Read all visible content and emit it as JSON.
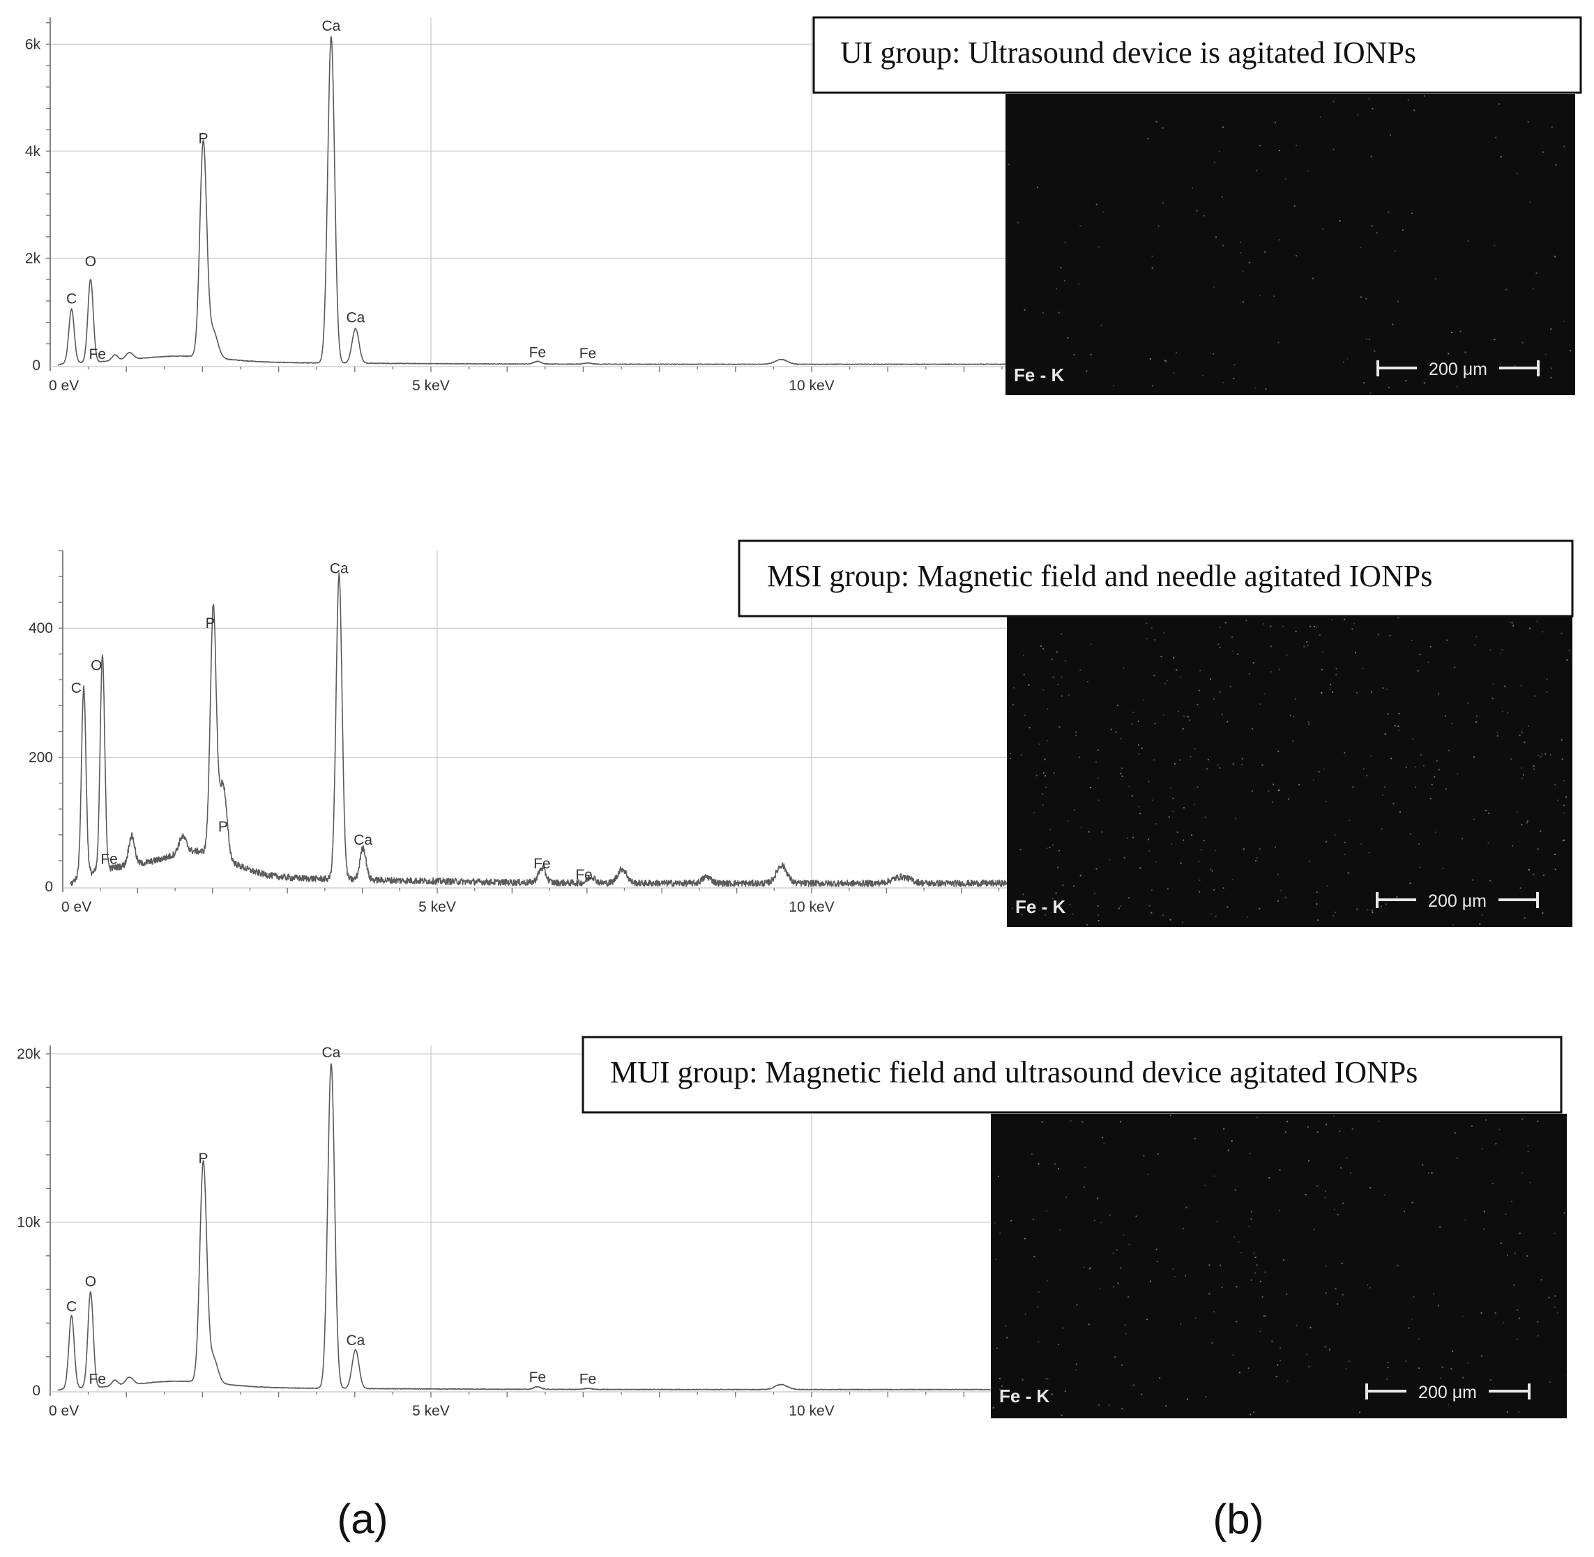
{
  "panels": [
    {
      "title": "UI group: Ultrasound device is agitated IONPs",
      "map": {
        "label": "Fe - K",
        "scalebar": "200 μm"
      },
      "chart_data": {
        "type": "line",
        "xlim": [
          0,
          12.8
        ],
        "ylim": [
          0,
          6500
        ],
        "xticks": [
          {
            "value": 0,
            "label": "0 eV"
          },
          {
            "value": 5,
            "label": "5 keV"
          },
          {
            "value": 10,
            "label": "10 keV"
          }
        ],
        "yticks": [
          {
            "value": 0,
            "label": "0"
          },
          {
            "value": 2000,
            "label": "2k"
          },
          {
            "value": 4000,
            "label": "4k"
          },
          {
            "value": 6000,
            "label": "6k"
          }
        ],
        "grid": true,
        "background": 50,
        "peaks": [
          {
            "x": 0.28,
            "y": 1000,
            "w": 0.035
          },
          {
            "x": 0.53,
            "y": 1550,
            "w": 0.035
          },
          {
            "x": 0.85,
            "y": 110,
            "w": 0.04
          },
          {
            "x": 1.04,
            "y": 130,
            "w": 0.05
          },
          {
            "x": 2.01,
            "y": 4000,
            "w": 0.045
          },
          {
            "x": 2.14,
            "y": 500,
            "w": 0.06
          },
          {
            "x": 3.69,
            "y": 6100,
            "w": 0.045
          },
          {
            "x": 4.01,
            "y": 650,
            "w": 0.045
          },
          {
            "x": 6.4,
            "y": 50,
            "w": 0.05
          },
          {
            "x": 7.06,
            "y": 20,
            "w": 0.05
          },
          {
            "x": 9.6,
            "y": 90,
            "w": 0.08
          }
        ],
        "humps": [
          {
            "x": 1.7,
            "y": 120,
            "w": 0.55
          }
        ],
        "noise": 6,
        "labels": [
          {
            "text": "C",
            "x": 0.28,
            "y": 1150
          },
          {
            "text": "O",
            "x": 0.53,
            "y": 1850
          },
          {
            "text": "Fe",
            "x": 0.62,
            "y": 120
          },
          {
            "text": "P",
            "x": 2.01,
            "y": 4150
          },
          {
            "text": "Ca",
            "x": 3.69,
            "y": 6250
          },
          {
            "text": "Ca",
            "x": 4.01,
            "y": 800
          },
          {
            "text": "Fe",
            "x": 6.4,
            "y": 150
          },
          {
            "text": "Fe",
            "x": 7.06,
            "y": 130
          }
        ]
      }
    },
    {
      "title": "MSI group: Magnetic field and needle agitated IONPs",
      "map": {
        "label": "Fe - K",
        "scalebar": "200 μm"
      },
      "chart_data": {
        "type": "line",
        "xlim": [
          0,
          12.8
        ],
        "ylim": [
          0,
          520
        ],
        "xticks": [
          {
            "value": 0,
            "label": "0 eV"
          },
          {
            "value": 5,
            "label": "5 keV"
          },
          {
            "value": 10,
            "label": "10 keV"
          }
        ],
        "yticks": [
          {
            "value": 0,
            "label": "0"
          },
          {
            "value": 200,
            "label": "200"
          },
          {
            "value": 400,
            "label": "400"
          }
        ],
        "grid": true,
        "background": 14,
        "peaks": [
          {
            "x": 0.28,
            "y": 290,
            "w": 0.03
          },
          {
            "x": 0.53,
            "y": 335,
            "w": 0.03
          },
          {
            "x": 0.92,
            "y": 45,
            "w": 0.04
          },
          {
            "x": 1.6,
            "y": 25,
            "w": 0.05
          },
          {
            "x": 2.01,
            "y": 380,
            "w": 0.04
          },
          {
            "x": 2.14,
            "y": 115,
            "w": 0.05
          },
          {
            "x": 3.69,
            "y": 470,
            "w": 0.04
          },
          {
            "x": 4.01,
            "y": 50,
            "w": 0.04
          },
          {
            "x": 6.4,
            "y": 22,
            "w": 0.05
          },
          {
            "x": 7.06,
            "y": 10,
            "w": 0.05
          },
          {
            "x": 7.47,
            "y": 22,
            "w": 0.06
          },
          {
            "x": 8.6,
            "y": 10,
            "w": 0.06
          },
          {
            "x": 9.6,
            "y": 28,
            "w": 0.07
          },
          {
            "x": 11.2,
            "y": 10,
            "w": 0.12
          }
        ],
        "humps": [
          {
            "x": 1.8,
            "y": 40,
            "w": 0.45
          },
          {
            "x": 0.8,
            "y": 15,
            "w": 0.4
          }
        ],
        "noise": 5,
        "labels": [
          {
            "text": "C",
            "x": 0.18,
            "y": 300
          },
          {
            "text": "O",
            "x": 0.45,
            "y": 335
          },
          {
            "text": "Fe",
            "x": 0.62,
            "y": 35
          },
          {
            "text": "P",
            "x": 1.97,
            "y": 400
          },
          {
            "text": "P",
            "x": 2.14,
            "y": 85
          },
          {
            "text": "Ca",
            "x": 3.69,
            "y": 485
          },
          {
            "text": "Ca",
            "x": 4.01,
            "y": 65
          },
          {
            "text": "Fe",
            "x": 6.4,
            "y": 28
          },
          {
            "text": "Fe",
            "x": 6.96,
            "y": 11
          }
        ]
      }
    },
    {
      "title": "MUI group: Magnetic field and ultrasound device agitated IONPs",
      "map": {
        "label": "Fe - K",
        "scalebar": "200 μm"
      },
      "chart_data": {
        "type": "line",
        "xlim": [
          0,
          12.8
        ],
        "ylim": [
          0,
          20500
        ],
        "xticks": [
          {
            "value": 0,
            "label": "0 eV"
          },
          {
            "value": 5,
            "label": "5 keV"
          },
          {
            "value": 10,
            "label": "10 keV"
          }
        ],
        "yticks": [
          {
            "value": 0,
            "label": "0"
          },
          {
            "value": 10000,
            "label": "10k"
          },
          {
            "value": 20000,
            "label": "20k"
          }
        ],
        "grid": true,
        "background": 150,
        "peaks": [
          {
            "x": 0.28,
            "y": 4300,
            "w": 0.035
          },
          {
            "x": 0.53,
            "y": 5700,
            "w": 0.035
          },
          {
            "x": 0.85,
            "y": 350,
            "w": 0.04
          },
          {
            "x": 1.04,
            "y": 450,
            "w": 0.05
          },
          {
            "x": 2.01,
            "y": 13000,
            "w": 0.045
          },
          {
            "x": 2.14,
            "y": 1500,
            "w": 0.06
          },
          {
            "x": 3.69,
            "y": 19300,
            "w": 0.045
          },
          {
            "x": 4.01,
            "y": 2300,
            "w": 0.045
          },
          {
            "x": 6.4,
            "y": 150,
            "w": 0.05
          },
          {
            "x": 7.06,
            "y": 60,
            "w": 0.05
          },
          {
            "x": 9.6,
            "y": 300,
            "w": 0.08
          }
        ],
        "humps": [
          {
            "x": 1.7,
            "y": 400,
            "w": 0.55
          }
        ],
        "noise": 20,
        "labels": [
          {
            "text": "C",
            "x": 0.28,
            "y": 4700
          },
          {
            "text": "O",
            "x": 0.53,
            "y": 6200
          },
          {
            "text": "Fe",
            "x": 0.62,
            "y": 400
          },
          {
            "text": "P",
            "x": 2.01,
            "y": 13500
          },
          {
            "text": "Ca",
            "x": 3.69,
            "y": 19800
          },
          {
            "text": "Ca",
            "x": 4.01,
            "y": 2700
          },
          {
            "text": "Fe",
            "x": 6.4,
            "y": 500
          },
          {
            "text": "Fe",
            "x": 7.06,
            "y": 400
          }
        ]
      }
    }
  ],
  "captions": {
    "a": "(a)",
    "b": "(b)"
  },
  "colors": {
    "spectrum": "#5a5a5a",
    "map_background": "#0d0d0d",
    "map_text": "#e8e8e8"
  }
}
